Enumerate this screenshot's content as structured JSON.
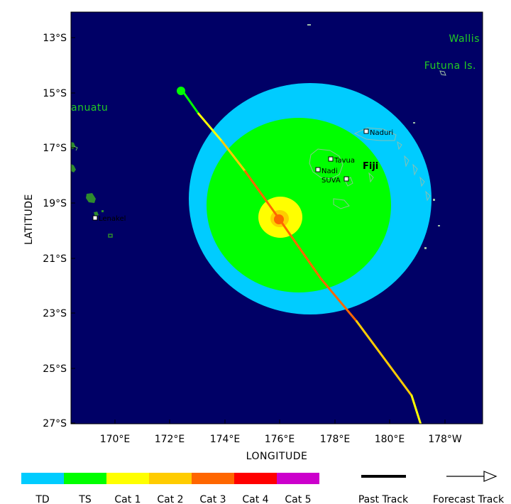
{
  "map": {
    "axes": {
      "xlabel": "LONGITUDE",
      "ylabel": "LATITUDE",
      "lat_ticks": [
        "13°S",
        "15°S",
        "17°S",
        "19°S",
        "21°S",
        "23°S",
        "25°S",
        "27°S"
      ],
      "lon_ticks": [
        "170°E",
        "172°E",
        "174°E",
        "176°E",
        "178°E",
        "180°E",
        "178°W"
      ]
    },
    "labels": {
      "wallis": "Wallis",
      "futuna": "Futuna Is.",
      "vanuatu": "anuatu",
      "fiji": "Fiji",
      "naduri": "Naduri",
      "tavua": "Tavua",
      "nadi": "Nadi",
      "suva": "SUVA",
      "lenakel": "Lenakel"
    },
    "colors": {
      "ocean": "#000066",
      "land": "#2e8b2e",
      "td": "#00ccff",
      "ts": "#00ff00",
      "cat1": "#ffff00",
      "cat2": "#ffcc00",
      "cat3": "#ff6600",
      "cat4": "#ff0000",
      "cat5": "#cc00cc"
    },
    "storm_center": {
      "lat": -19.6,
      "lon": 176.0
    },
    "track_points": [
      {
        "lon": 172.45,
        "lat": -14.9
      },
      {
        "lon": 173.05,
        "lat": -15.75
      },
      {
        "lon": 173.9,
        "lat": -16.75
      },
      {
        "lon": 174.75,
        "lat": -17.85
      },
      {
        "lon": 176.0,
        "lat": -19.6
      },
      {
        "lon": 177.5,
        "lat": -21.75
      },
      {
        "lon": 178.8,
        "lat": -23.3
      },
      {
        "lon": 180.8,
        "lat": -26.0
      },
      {
        "lon": 181.15,
        "lat": -27.1
      }
    ]
  },
  "legend": {
    "td": "TD",
    "ts": "TS",
    "cat1": "Cat 1",
    "cat2": "Cat 2",
    "cat3": "Cat 3",
    "cat4": "Cat 4",
    "cat5": "Cat 5",
    "past_track": "Past Track",
    "forecast_track": "Forecast Track"
  }
}
